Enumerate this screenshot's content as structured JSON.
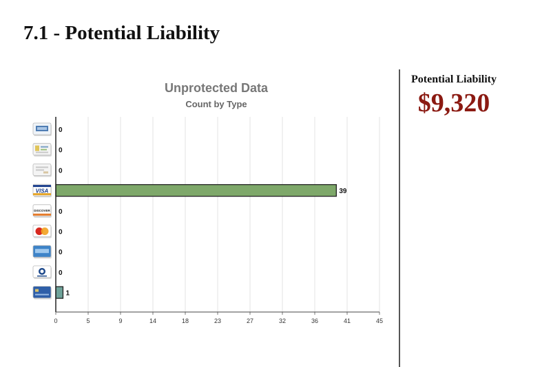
{
  "section": {
    "title": "7.1 - Potential Liability"
  },
  "liability": {
    "label": "Potential Liability",
    "value": "$9,320"
  },
  "colors": {
    "accent": "#8b1a12",
    "bar_default": "#7ea86a",
    "bar_alt": "#6fa39a"
  },
  "chart_data": {
    "type": "bar",
    "orientation": "horizontal",
    "title": "Unprotected Data",
    "subtitle": "Count by Type",
    "xlabel": "",
    "ylabel": "",
    "xlim": [
      0,
      45
    ],
    "xticks": [
      "0",
      "5",
      "9",
      "14",
      "18",
      "23",
      "27",
      "32",
      "36",
      "41",
      "45"
    ],
    "grid": true,
    "categories": [
      {
        "icon": "generic-card-icon",
        "value": 0,
        "color": "#7ea86a"
      },
      {
        "icon": "document-card-icon",
        "value": 0,
        "color": "#7ea86a"
      },
      {
        "icon": "gray-card-icon",
        "value": 0,
        "color": "#7ea86a"
      },
      {
        "icon": "visa-card-icon",
        "value": 39,
        "color": "#7ea86a"
      },
      {
        "icon": "discover-card-icon",
        "value": 0,
        "color": "#7ea86a"
      },
      {
        "icon": "mastercard-icon",
        "value": 0,
        "color": "#7ea86a"
      },
      {
        "icon": "amex-card-icon",
        "value": 0,
        "color": "#7ea86a"
      },
      {
        "icon": "diners-club-card-icon",
        "value": 0,
        "color": "#7ea86a"
      },
      {
        "icon": "blue-card-icon",
        "value": 1,
        "color": "#6fa39a"
      }
    ]
  }
}
